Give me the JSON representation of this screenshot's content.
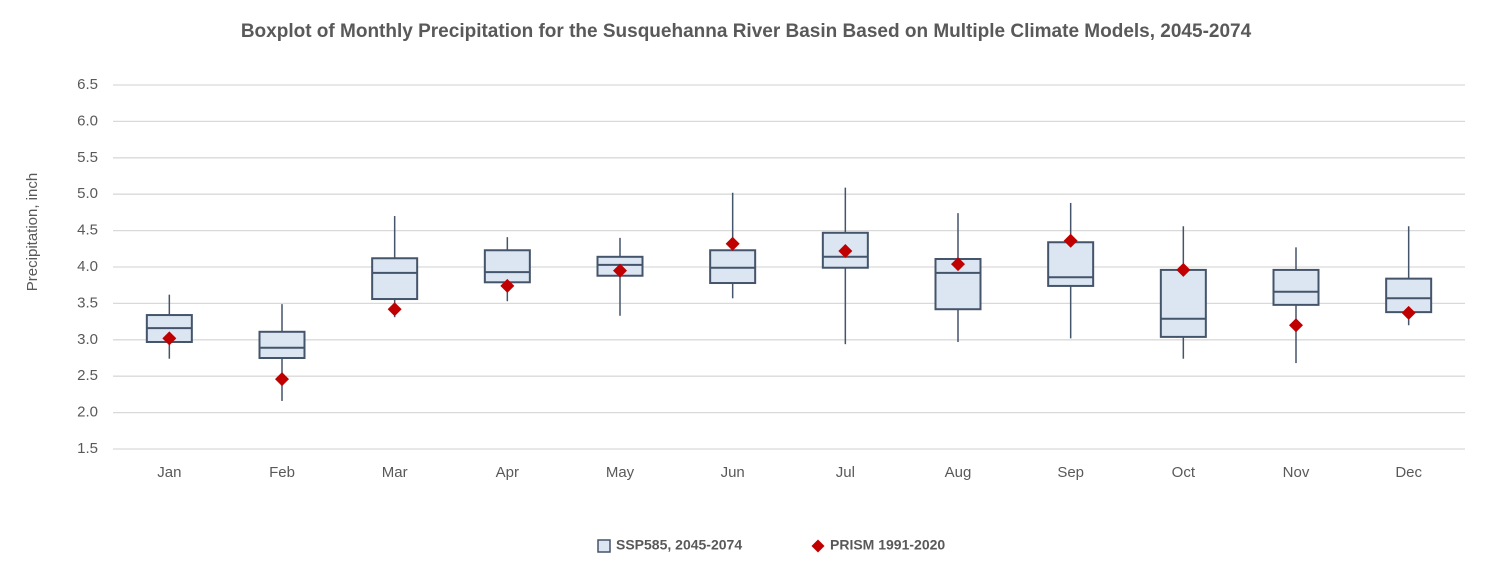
{
  "chart_data": {
    "type": "box",
    "title": "Boxplot of Monthly Precipitation for the Susquehanna River Basin Based on Multiple Climate Models, 2045-2074",
    "y_label": "Precipitation, inch",
    "categories": [
      "Jan",
      "Feb",
      "Mar",
      "Apr",
      "May",
      "Jun",
      "Jul",
      "Aug",
      "Sep",
      "Oct",
      "Nov",
      "Dec"
    ],
    "ylim": [
      1.5,
      6.5
    ],
    "yticks": [
      1.5,
      {
        "value": 2,
        "label": "2.0"
      },
      2.5,
      {
        "value": 3,
        "label": "3.0"
      },
      3.5,
      {
        "value": 4,
        "label": "4.0"
      },
      4.5,
      {
        "value": 5,
        "label": "5.0"
      },
      5.5,
      {
        "value": 6,
        "label": "6.0"
      },
      6.5
    ],
    "grid": true,
    "series": [
      {
        "name": "SSP585, 2045-2074",
        "type": "box",
        "color": "#dce6f2",
        "edge_color": "#44546a",
        "min": [
          2.74,
          2.16,
          3.31,
          3.53,
          3.33,
          3.57,
          2.94,
          2.97,
          3.02,
          2.74,
          2.68,
          3.2
        ],
        "q1": [
          2.97,
          2.75,
          3.56,
          3.79,
          3.88,
          3.78,
          3.99,
          3.42,
          3.74,
          3.04,
          3.48,
          3.38
        ],
        "median": [
          3.16,
          2.89,
          3.92,
          3.93,
          4.03,
          3.99,
          4.14,
          3.92,
          3.86,
          3.29,
          3.66,
          3.57
        ],
        "q3": [
          3.34,
          3.11,
          4.12,
          4.23,
          4.14,
          4.23,
          4.47,
          4.11,
          4.34,
          3.96,
          3.96,
          3.84
        ],
        "max": [
          3.62,
          3.49,
          4.7,
          4.41,
          4.4,
          5.02,
          5.09,
          4.74,
          4.88,
          4.56,
          4.27,
          4.56
        ]
      },
      {
        "name": "PRISM 1991-2020",
        "type": "diamond",
        "color": "#c00000",
        "values": [
          3.02,
          2.46,
          3.42,
          3.74,
          3.95,
          4.32,
          4.22,
          4.04,
          4.36,
          3.96,
          3.2,
          3.37
        ]
      }
    ]
  }
}
